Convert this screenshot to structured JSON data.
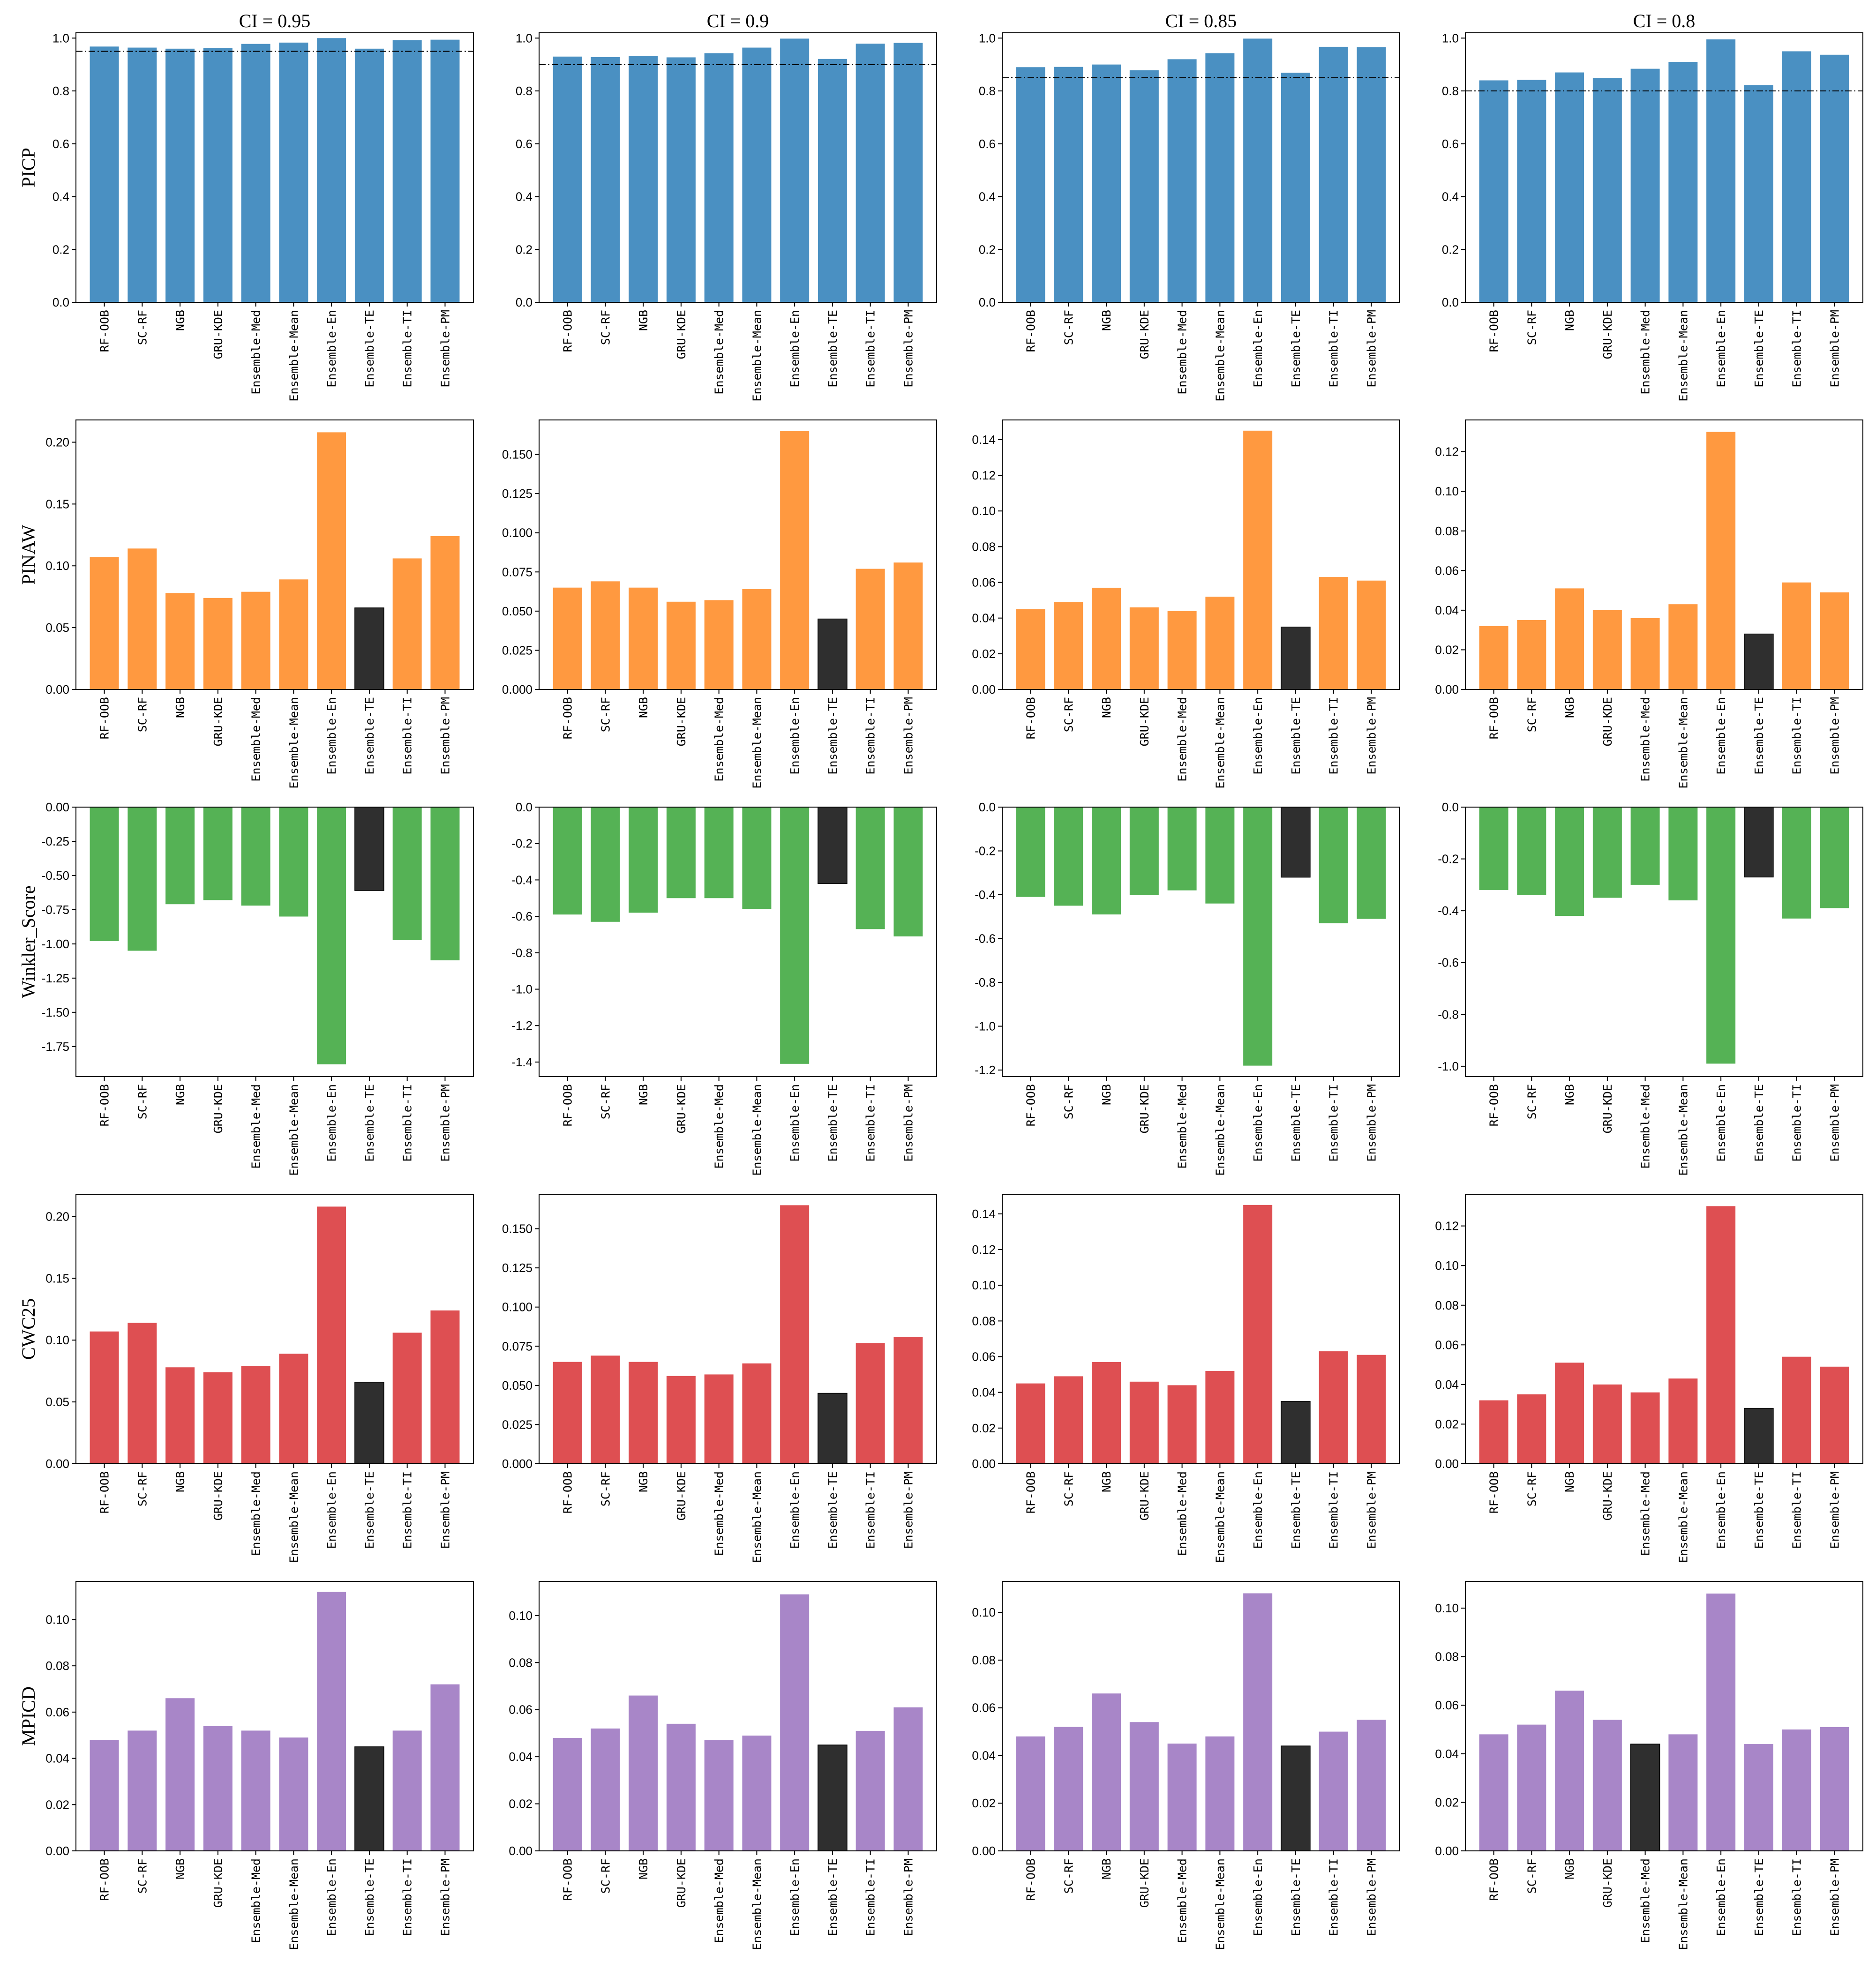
{
  "chart_data": {
    "type": "bar",
    "grid": false,
    "categories": [
      "RF-OOB",
      "SC-RF",
      "NGB",
      "GRU-KDE",
      "Ensemble-Med",
      "Ensemble-Mean",
      "Ensemble-En",
      "Ensemble-TE",
      "Ensemble-TI",
      "Ensemble-PM"
    ],
    "columns": [
      "CI = 0.95",
      "CI = 0.9",
      "CI = 0.85",
      "CI = 0.8"
    ],
    "highlight_color": "#2f2f2f",
    "rows": [
      {
        "ylabel": "PICP",
        "color": "#4a90c2",
        "ylims": [
          [
            0,
            1.02
          ],
          [
            0,
            1.02
          ],
          [
            0,
            1.02
          ],
          [
            0,
            1.02
          ]
        ],
        "yticks": [
          [
            "0.0",
            "0.2",
            "0.4",
            "0.6",
            "0.8",
            "1.0"
          ],
          [
            "0.0",
            "0.2",
            "0.4",
            "0.6",
            "0.8",
            "1.0"
          ],
          [
            "0.0",
            "0.2",
            "0.4",
            "0.6",
            "0.8",
            "1.0"
          ],
          [
            "0.0",
            "0.2",
            "0.4",
            "0.6",
            "0.8",
            "1.0"
          ]
        ],
        "reference_lines": [
          0.95,
          0.9,
          0.85,
          0.8
        ],
        "highlight_index": [
          null,
          null,
          null,
          null
        ],
        "values": [
          [
            0.968,
            0.964,
            0.96,
            0.963,
            0.978,
            0.983,
            1.0,
            0.96,
            0.992,
            0.994
          ],
          [
            0.93,
            0.928,
            0.932,
            0.927,
            0.943,
            0.964,
            0.998,
            0.921,
            0.979,
            0.982
          ],
          [
            0.89,
            0.891,
            0.9,
            0.878,
            0.92,
            0.943,
            0.998,
            0.869,
            0.967,
            0.966
          ],
          [
            0.84,
            0.842,
            0.87,
            0.848,
            0.884,
            0.91,
            0.995,
            0.822,
            0.95,
            0.937
          ]
        ]
      },
      {
        "ylabel": "PINAW",
        "color": "#ff9940",
        "ylims": [
          [
            0,
            0.218
          ],
          [
            0,
            0.172
          ],
          [
            0,
            0.151
          ],
          [
            0,
            0.136
          ]
        ],
        "yticks": [
          [
            "0.00",
            "0.05",
            "0.10",
            "0.15",
            "0.20"
          ],
          [
            "0.000",
            "0.025",
            "0.050",
            "0.075",
            "0.100",
            "0.125",
            "0.150"
          ],
          [
            "0.00",
            "0.02",
            "0.04",
            "0.06",
            "0.08",
            "0.10",
            "0.12",
            "0.14"
          ],
          [
            "0.00",
            "0.02",
            "0.04",
            "0.06",
            "0.08",
            "0.10",
            "0.12"
          ]
        ],
        "reference_lines": [
          null,
          null,
          null,
          null
        ],
        "highlight_index": [
          7,
          7,
          7,
          7
        ],
        "values": [
          [
            0.107,
            0.114,
            0.078,
            0.074,
            0.079,
            0.089,
            0.208,
            0.066,
            0.106,
            0.124
          ],
          [
            0.065,
            0.069,
            0.065,
            0.056,
            0.057,
            0.064,
            0.165,
            0.045,
            0.077,
            0.081
          ],
          [
            0.045,
            0.049,
            0.057,
            0.046,
            0.044,
            0.052,
            0.145,
            0.035,
            0.063,
            0.061
          ],
          [
            0.032,
            0.035,
            0.051,
            0.04,
            0.036,
            0.043,
            0.13,
            0.028,
            0.054,
            0.049
          ]
        ]
      },
      {
        "ylabel": "Winkler_Score",
        "color": "#55b255",
        "ylims": [
          [
            -1.97,
            0
          ],
          [
            -1.48,
            0
          ],
          [
            -1.23,
            0
          ],
          [
            -1.04,
            0
          ]
        ],
        "yticks": [
          [
            "-1.75",
            "-1.50",
            "-1.25",
            "-1.00",
            "-0.75",
            "-0.50",
            "-0.25",
            "0.00"
          ],
          [
            "-1.4",
            "-1.2",
            "-1.0",
            "-0.8",
            "-0.6",
            "-0.4",
            "-0.2",
            "0.0"
          ],
          [
            "-1.2",
            "-1.0",
            "-0.8",
            "-0.6",
            "-0.4",
            "-0.2",
            "0.0"
          ],
          [
            "-1.0",
            "-0.8",
            "-0.6",
            "-0.4",
            "-0.2",
            "0.0"
          ]
        ],
        "reference_lines": [
          null,
          null,
          null,
          null
        ],
        "highlight_index": [
          7,
          7,
          7,
          7
        ],
        "values": [
          [
            -0.98,
            -1.05,
            -0.71,
            -0.68,
            -0.72,
            -0.8,
            -1.88,
            -0.61,
            -0.97,
            -1.12
          ],
          [
            -0.59,
            -0.63,
            -0.58,
            -0.5,
            -0.5,
            -0.56,
            -1.41,
            -0.42,
            -0.67,
            -0.71
          ],
          [
            -0.41,
            -0.45,
            -0.49,
            -0.4,
            -0.38,
            -0.44,
            -1.18,
            -0.32,
            -0.53,
            -0.51
          ],
          [
            -0.32,
            -0.34,
            -0.42,
            -0.35,
            -0.3,
            -0.36,
            -0.99,
            -0.27,
            -0.43,
            -0.39
          ]
        ]
      },
      {
        "ylabel": "CWC25",
        "color": "#de4f52",
        "ylims": [
          [
            0,
            0.218
          ],
          [
            0,
            0.172
          ],
          [
            0,
            0.151
          ],
          [
            0,
            0.136
          ]
        ],
        "yticks": [
          [
            "0.00",
            "0.05",
            "0.10",
            "0.15",
            "0.20"
          ],
          [
            "0.000",
            "0.025",
            "0.050",
            "0.075",
            "0.100",
            "0.125",
            "0.150"
          ],
          [
            "0.00",
            "0.02",
            "0.04",
            "0.06",
            "0.08",
            "0.10",
            "0.12",
            "0.14"
          ],
          [
            "0.00",
            "0.02",
            "0.04",
            "0.06",
            "0.08",
            "0.10",
            "0.12"
          ]
        ],
        "reference_lines": [
          null,
          null,
          null,
          null
        ],
        "highlight_index": [
          7,
          7,
          7,
          7
        ],
        "values": [
          [
            0.107,
            0.114,
            0.078,
            0.074,
            0.079,
            0.089,
            0.208,
            0.066,
            0.106,
            0.124
          ],
          [
            0.065,
            0.069,
            0.065,
            0.056,
            0.057,
            0.064,
            0.165,
            0.045,
            0.077,
            0.081
          ],
          [
            0.045,
            0.049,
            0.057,
            0.046,
            0.044,
            0.052,
            0.145,
            0.035,
            0.063,
            0.061
          ],
          [
            0.032,
            0.035,
            0.051,
            0.04,
            0.036,
            0.043,
            0.13,
            0.028,
            0.054,
            0.049
          ]
        ]
      },
      {
        "ylabel": "MPICD",
        "color": "#a886c8",
        "ylims": [
          [
            0,
            0.1165
          ],
          [
            0,
            0.1145
          ],
          [
            0,
            0.113
          ],
          [
            0,
            0.111
          ]
        ],
        "yticks": [
          [
            "0.00",
            "0.02",
            "0.04",
            "0.06",
            "0.08",
            "0.10"
          ],
          [
            "0.00",
            "0.02",
            "0.04",
            "0.06",
            "0.08",
            "0.10"
          ],
          [
            "0.00",
            "0.02",
            "0.04",
            "0.06",
            "0.08",
            "0.10"
          ],
          [
            "0.00",
            "0.02",
            "0.04",
            "0.06",
            "0.08",
            "0.10"
          ]
        ],
        "reference_lines": [
          null,
          null,
          null,
          null
        ],
        "highlight_index": [
          7,
          7,
          7,
          4
        ],
        "values": [
          [
            0.048,
            0.052,
            0.066,
            0.054,
            0.052,
            0.049,
            0.112,
            0.045,
            0.052,
            0.072
          ],
          [
            0.048,
            0.052,
            0.066,
            0.054,
            0.047,
            0.049,
            0.109,
            0.045,
            0.051,
            0.061
          ],
          [
            0.048,
            0.052,
            0.066,
            0.054,
            0.045,
            0.048,
            0.108,
            0.044,
            0.05,
            0.055
          ],
          [
            0.048,
            0.052,
            0.066,
            0.054,
            0.044,
            0.048,
            0.106,
            0.044,
            0.05,
            0.051
          ]
        ]
      }
    ]
  }
}
